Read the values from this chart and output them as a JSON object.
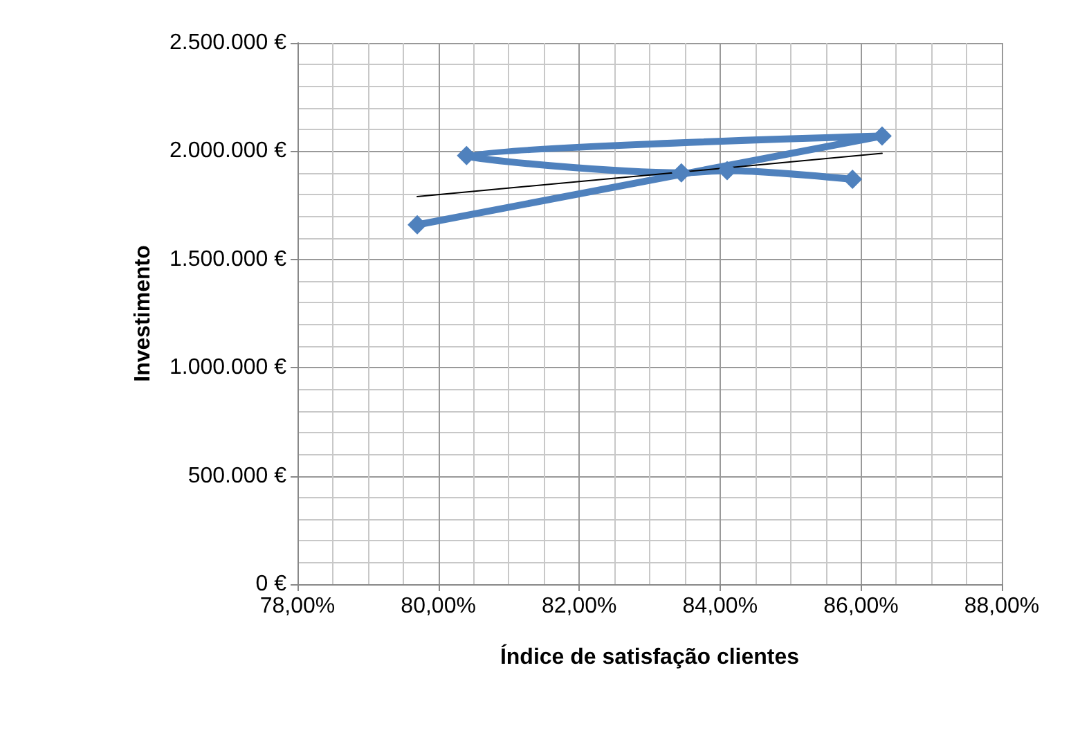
{
  "chart_data": {
    "type": "line",
    "xlabel": "Índice de satisfação clientes",
    "ylabel": "Investimento",
    "x": [
      79.7,
      86.3,
      80.4,
      83.45,
      84.1,
      85.88
    ],
    "series": [
      {
        "color": "#4f81bd",
        "values": [
          1660000,
          2070000,
          1980000,
          1900000,
          1910000,
          1870000
        ],
        "marker": "diamond"
      },
      {
        "type": "line",
        "color": "#000000",
        "x": [
          79.7,
          86.3
        ],
        "values": [
          1790000,
          1990000
        ],
        "marker": "none"
      }
    ],
    "xlim": [
      78,
      88
    ],
    "xticks": [
      {
        "value": 78,
        "label": "78,00%"
      },
      {
        "value": 80,
        "label": "80,00%"
      },
      {
        "value": 82,
        "label": "82,00%"
      },
      {
        "value": 84,
        "label": "84,00%"
      },
      {
        "value": 86,
        "label": "86,00%"
      },
      {
        "value": 88,
        "label": "88,00%"
      }
    ],
    "ylim": [
      0,
      2500000
    ],
    "yticks": [
      {
        "value": 0,
        "label": "0 €"
      },
      {
        "value": 500000,
        "label": "500.000 €"
      },
      {
        "value": 1000000,
        "label": "1.000.000 €"
      },
      {
        "value": 1500000,
        "label": "1.500.000 €"
      },
      {
        "value": 2000000,
        "label": "2.000.000 €"
      },
      {
        "value": 2500000,
        "label": "2.500.000 €"
      }
    ],
    "grid": true,
    "line_style": "solid"
  }
}
